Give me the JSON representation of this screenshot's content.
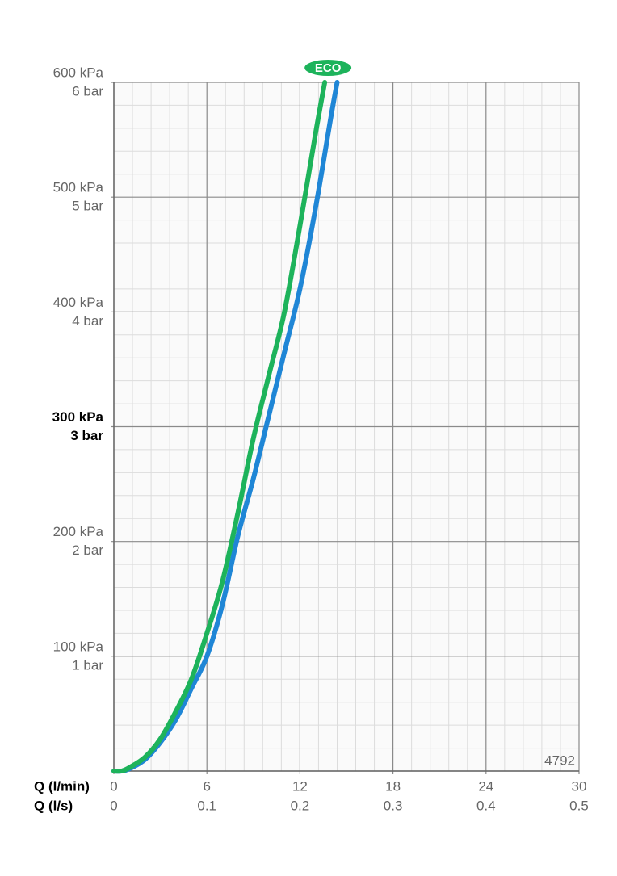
{
  "chart_data": {
    "type": "line",
    "xlabel": "Q (l/min)",
    "x2label": "Q (l/s)",
    "xlim": [
      0,
      30
    ],
    "xticks": [
      0,
      6,
      12,
      18,
      24,
      30
    ],
    "x2lim": [
      0,
      0.5
    ],
    "x2ticks": [
      0,
      0.1,
      0.2,
      0.3,
      0.4,
      0.5
    ],
    "ylim": [
      0,
      600
    ],
    "yticks": [
      0,
      {
        "value": 100,
        "label": "100 kPa"
      },
      {
        "value": 200,
        "label": "200 kPa"
      },
      {
        "value": 300,
        "label": "300 kPa"
      },
      {
        "value": 400,
        "label": "400 kPa"
      },
      {
        "value": 500,
        "label": "500 kPa"
      },
      {
        "value": 600,
        "label": "600 kPa"
      }
    ],
    "y2lim": [
      0,
      6
    ],
    "y2ticks": [
      {
        "value": 1,
        "label": "1 bar"
      },
      {
        "value": 2,
        "label": "2 bar"
      },
      {
        "value": 3,
        "label": "3 bar"
      },
      {
        "value": 4,
        "label": "4 bar"
      },
      {
        "value": 5,
        "label": "5 bar"
      },
      {
        "value": 6,
        "label": "6 bar"
      }
    ],
    "highlight_ytick": 300,
    "grid": true,
    "minor_grid": 5,
    "annotation": "4792",
    "series": [
      {
        "name": "ECO",
        "color": "#1db35b",
        "x": [
          0,
          0.5,
          1,
          2,
          3,
          4,
          5,
          6,
          7,
          8,
          9,
          10,
          11,
          12,
          13,
          13.6
        ],
        "values": [
          0,
          0,
          3,
          12,
          28,
          52,
          80,
          120,
          165,
          225,
          290,
          345,
          400,
          475,
          555,
          600
        ]
      },
      {
        "color": "#1f86d6",
        "x": [
          0,
          0.5,
          1,
          2,
          3,
          4,
          5,
          6,
          7,
          8,
          9,
          10,
          11,
          12,
          13,
          14,
          14.4
        ],
        "values": [
          0,
          0,
          2,
          10,
          25,
          45,
          72,
          100,
          145,
          205,
          255,
          310,
          365,
          420,
          490,
          570,
          600
        ]
      }
    ]
  }
}
